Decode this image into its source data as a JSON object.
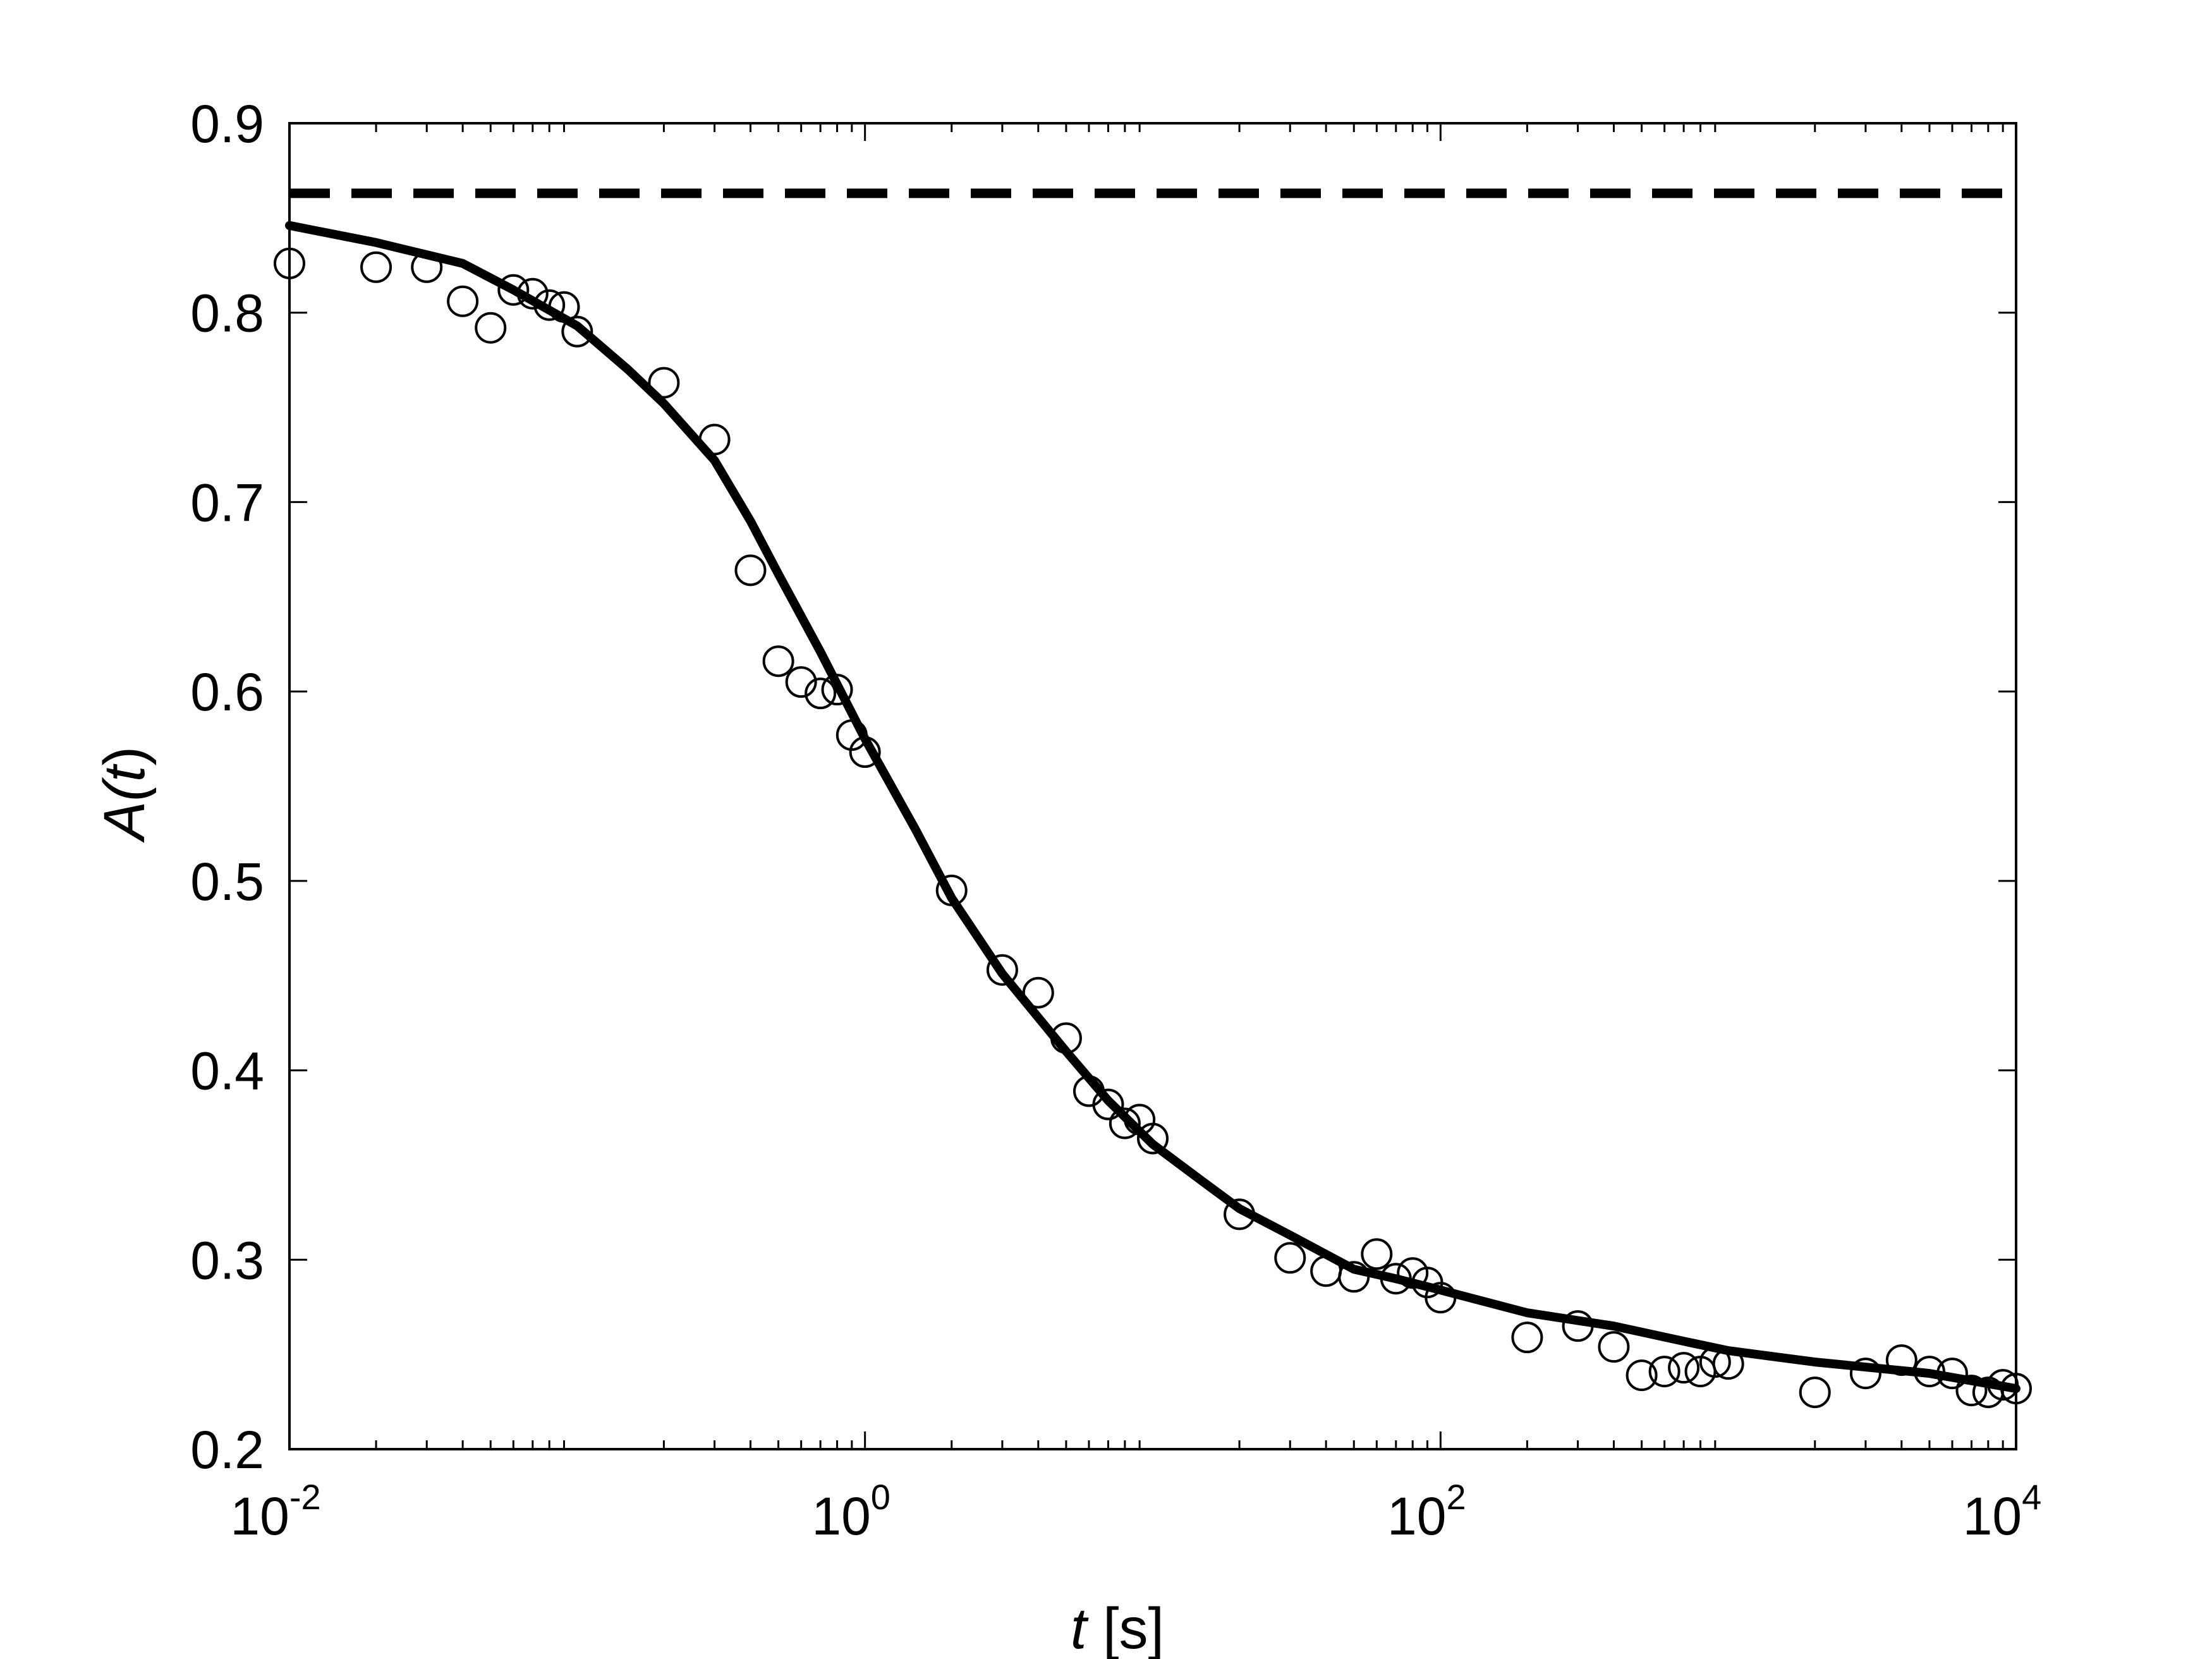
{
  "chart_data": {
    "type": "scatter",
    "title": "",
    "xlabel": "t [s]",
    "xlabel_var": "t",
    "xlabel_unit": " [s]",
    "ylabel": "A(t)",
    "ylabel_parts": {
      "pre": "A(",
      "var": "t",
      "post": ")"
    },
    "xscale": "log",
    "xlim": [
      0.01,
      10000
    ],
    "ylim": [
      0.2,
      0.9
    ],
    "grid": false,
    "legend": "none",
    "x_ticks": [
      {
        "base": "10",
        "exp": "-2",
        "value": 0.01
      },
      {
        "base": "10",
        "exp": "0",
        "value": 1
      },
      {
        "base": "10",
        "exp": "2",
        "value": 100
      },
      {
        "base": "10",
        "exp": "4",
        "value": 10000
      }
    ],
    "y_ticks": [
      {
        "label": "0.2",
        "value": 0.2
      },
      {
        "label": "0.3",
        "value": 0.3
      },
      {
        "label": "0.4",
        "value": 0.4
      },
      {
        "label": "0.5",
        "value": 0.5
      },
      {
        "label": "0.6",
        "value": 0.6
      },
      {
        "label": "0.7",
        "value": 0.7
      },
      {
        "label": "0.8",
        "value": 0.8
      },
      {
        "label": "0.9",
        "value": 0.9
      }
    ],
    "reference_line": {
      "y": 0.863,
      "style": "dashed",
      "color": "#000000"
    },
    "series": [
      {
        "type": "scatter",
        "marker": "open-circle",
        "color": "#000000",
        "points": [
          [
            0.01,
            0.826
          ],
          [
            0.02,
            0.824
          ],
          [
            0.03,
            0.824
          ],
          [
            0.04,
            0.806
          ],
          [
            0.05,
            0.792
          ],
          [
            0.06,
            0.812
          ],
          [
            0.07,
            0.81
          ],
          [
            0.08,
            0.804
          ],
          [
            0.09,
            0.803
          ],
          [
            0.1,
            0.79
          ],
          [
            0.2,
            0.763
          ],
          [
            0.3,
            0.733
          ],
          [
            0.4,
            0.664
          ],
          [
            0.5,
            0.616
          ],
          [
            0.6,
            0.605
          ],
          [
            0.7,
            0.599
          ],
          [
            0.8,
            0.601
          ],
          [
            0.9,
            0.577
          ],
          [
            1.0,
            0.568
          ],
          [
            2,
            0.495
          ],
          [
            3,
            0.453
          ],
          [
            4,
            0.441
          ],
          [
            5,
            0.417
          ],
          [
            6,
            0.389
          ],
          [
            7,
            0.382
          ],
          [
            8,
            0.372
          ],
          [
            9,
            0.374
          ],
          [
            10,
            0.364
          ],
          [
            20,
            0.324
          ],
          [
            30,
            0.301
          ],
          [
            40,
            0.294
          ],
          [
            50,
            0.291
          ],
          [
            60,
            0.303
          ],
          [
            70,
            0.29
          ],
          [
            80,
            0.293
          ],
          [
            90,
            0.288
          ],
          [
            100,
            0.28
          ],
          [
            200,
            0.259
          ],
          [
            300,
            0.265
          ],
          [
            400,
            0.254
          ],
          [
            500,
            0.239
          ],
          [
            600,
            0.241
          ],
          [
            700,
            0.243
          ],
          [
            800,
            0.241
          ],
          [
            900,
            0.246
          ],
          [
            1000,
            0.245
          ],
          [
            2000,
            0.23
          ],
          [
            3000,
            0.24
          ],
          [
            4000,
            0.247
          ],
          [
            5000,
            0.241
          ],
          [
            6000,
            0.24
          ],
          [
            7000,
            0.231
          ],
          [
            8000,
            0.23
          ],
          [
            9000,
            0.234
          ],
          [
            10000,
            0.232
          ]
        ]
      },
      {
        "type": "line",
        "color": "#000000",
        "points": [
          [
            0.01,
            0.846
          ],
          [
            0.02,
            0.837
          ],
          [
            0.04,
            0.826
          ],
          [
            0.06,
            0.812
          ],
          [
            0.1,
            0.793
          ],
          [
            0.15,
            0.77
          ],
          [
            0.2,
            0.752
          ],
          [
            0.3,
            0.722
          ],
          [
            0.4,
            0.69
          ],
          [
            0.5,
            0.662
          ],
          [
            0.7,
            0.621
          ],
          [
            1.0,
            0.575
          ],
          [
            1.5,
            0.527
          ],
          [
            2,
            0.491
          ],
          [
            3,
            0.451
          ],
          [
            5,
            0.41
          ],
          [
            7,
            0.384
          ],
          [
            10,
            0.361
          ],
          [
            15,
            0.341
          ],
          [
            20,
            0.327
          ],
          [
            30,
            0.313
          ],
          [
            50,
            0.295
          ],
          [
            70,
            0.29
          ],
          [
            100,
            0.284
          ],
          [
            200,
            0.272
          ],
          [
            400,
            0.265
          ],
          [
            700,
            0.257
          ],
          [
            1000,
            0.252
          ],
          [
            2000,
            0.246
          ],
          [
            5000,
            0.24
          ],
          [
            10000,
            0.232
          ]
        ]
      }
    ]
  }
}
